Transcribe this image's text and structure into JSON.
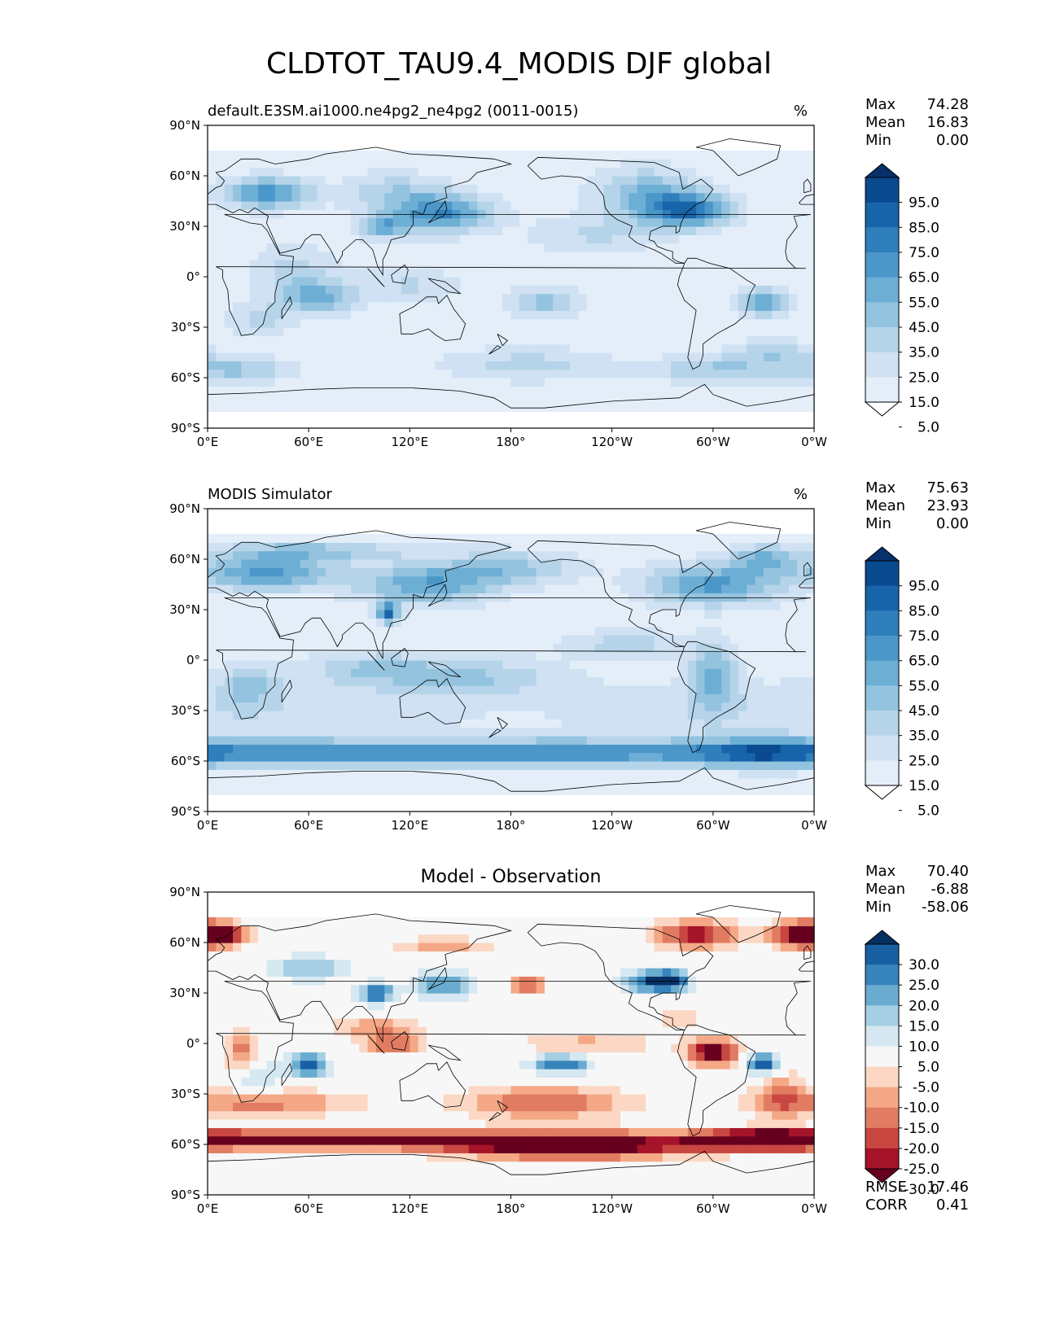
{
  "figure": {
    "title": "CLDTOT_TAU9.4_MODIS DJF global"
  },
  "axes": {
    "lon_ticks": [
      "0°E",
      "60°E",
      "120°E",
      "180°",
      "120°W",
      "60°W",
      "0°W"
    ],
    "lat_ticks": [
      "90°N",
      "60°N",
      "30°N",
      "0°",
      "30°S",
      "60°S",
      "90°S"
    ]
  },
  "panels": [
    {
      "id": "test",
      "left_title": "default.E3SM.ai1000.ne4pg2_ne4pg2 (0011-0015)",
      "center_title": "",
      "units": "%",
      "stats": [
        {
          "label": "Max",
          "value": "74.28"
        },
        {
          "label": "Mean",
          "value": "16.83"
        },
        {
          "label": "Min",
          "value": "0.00"
        }
      ],
      "extra_stats": [],
      "colorbar": {
        "labels": [
          "95.0",
          "85.0",
          "75.0",
          "65.0",
          "55.0",
          "45.0",
          "35.0",
          "25.0",
          "15.0",
          "5.0"
        ],
        "colors": [
          "#f7fbff",
          "#e3eef9",
          "#cfe1f2",
          "#b5d4e9",
          "#93c3df",
          "#6daed5",
          "#4b97c9",
          "#2f7fbc",
          "#1864aa",
          "#0a4a90",
          "#08306b"
        ],
        "min_extend_color": "#ffffff"
      }
    },
    {
      "id": "reference",
      "left_title": "MODIS Simulator",
      "center_title": "",
      "units": "%",
      "stats": [
        {
          "label": "Max",
          "value": "75.63"
        },
        {
          "label": "Mean",
          "value": "23.93"
        },
        {
          "label": "Min",
          "value": "0.00"
        }
      ],
      "extra_stats": [],
      "colorbar": {
        "labels": [
          "95.0",
          "85.0",
          "75.0",
          "65.0",
          "55.0",
          "45.0",
          "35.0",
          "25.0",
          "15.0",
          "5.0"
        ],
        "colors": [
          "#f7fbff",
          "#e3eef9",
          "#cfe1f2",
          "#b5d4e9",
          "#93c3df",
          "#6daed5",
          "#4b97c9",
          "#2f7fbc",
          "#1864aa",
          "#0a4a90",
          "#08306b"
        ],
        "min_extend_color": "#ffffff"
      }
    },
    {
      "id": "difference",
      "left_title": "",
      "center_title": "Model - Observation",
      "units": "",
      "stats": [
        {
          "label": "Max",
          "value": "70.40"
        },
        {
          "label": "Mean",
          "value": "-6.88"
        },
        {
          "label": "Min",
          "value": "-58.06"
        }
      ],
      "extra_stats": [
        {
          "label": "RMSE",
          "value": "17.46"
        },
        {
          "label": "CORR",
          "value": "0.41"
        }
      ],
      "colorbar": {
        "labels": [
          "30.0",
          "25.0",
          "20.0",
          "15.0",
          "10.0",
          "5.0",
          "-5.0",
          "-10.0",
          "-15.0",
          "-20.0",
          "-25.0",
          "-30.0"
        ],
        "colors": [
          "#67001f",
          "#a51429",
          "#c94741",
          "#e17c63",
          "#f4a886",
          "#fbd7c4",
          "#f7f7f7",
          "#d6e8f1",
          "#a6cfe4",
          "#6aacd0",
          "#3783bb",
          "#195fa3",
          "#053061"
        ]
      }
    }
  ]
}
